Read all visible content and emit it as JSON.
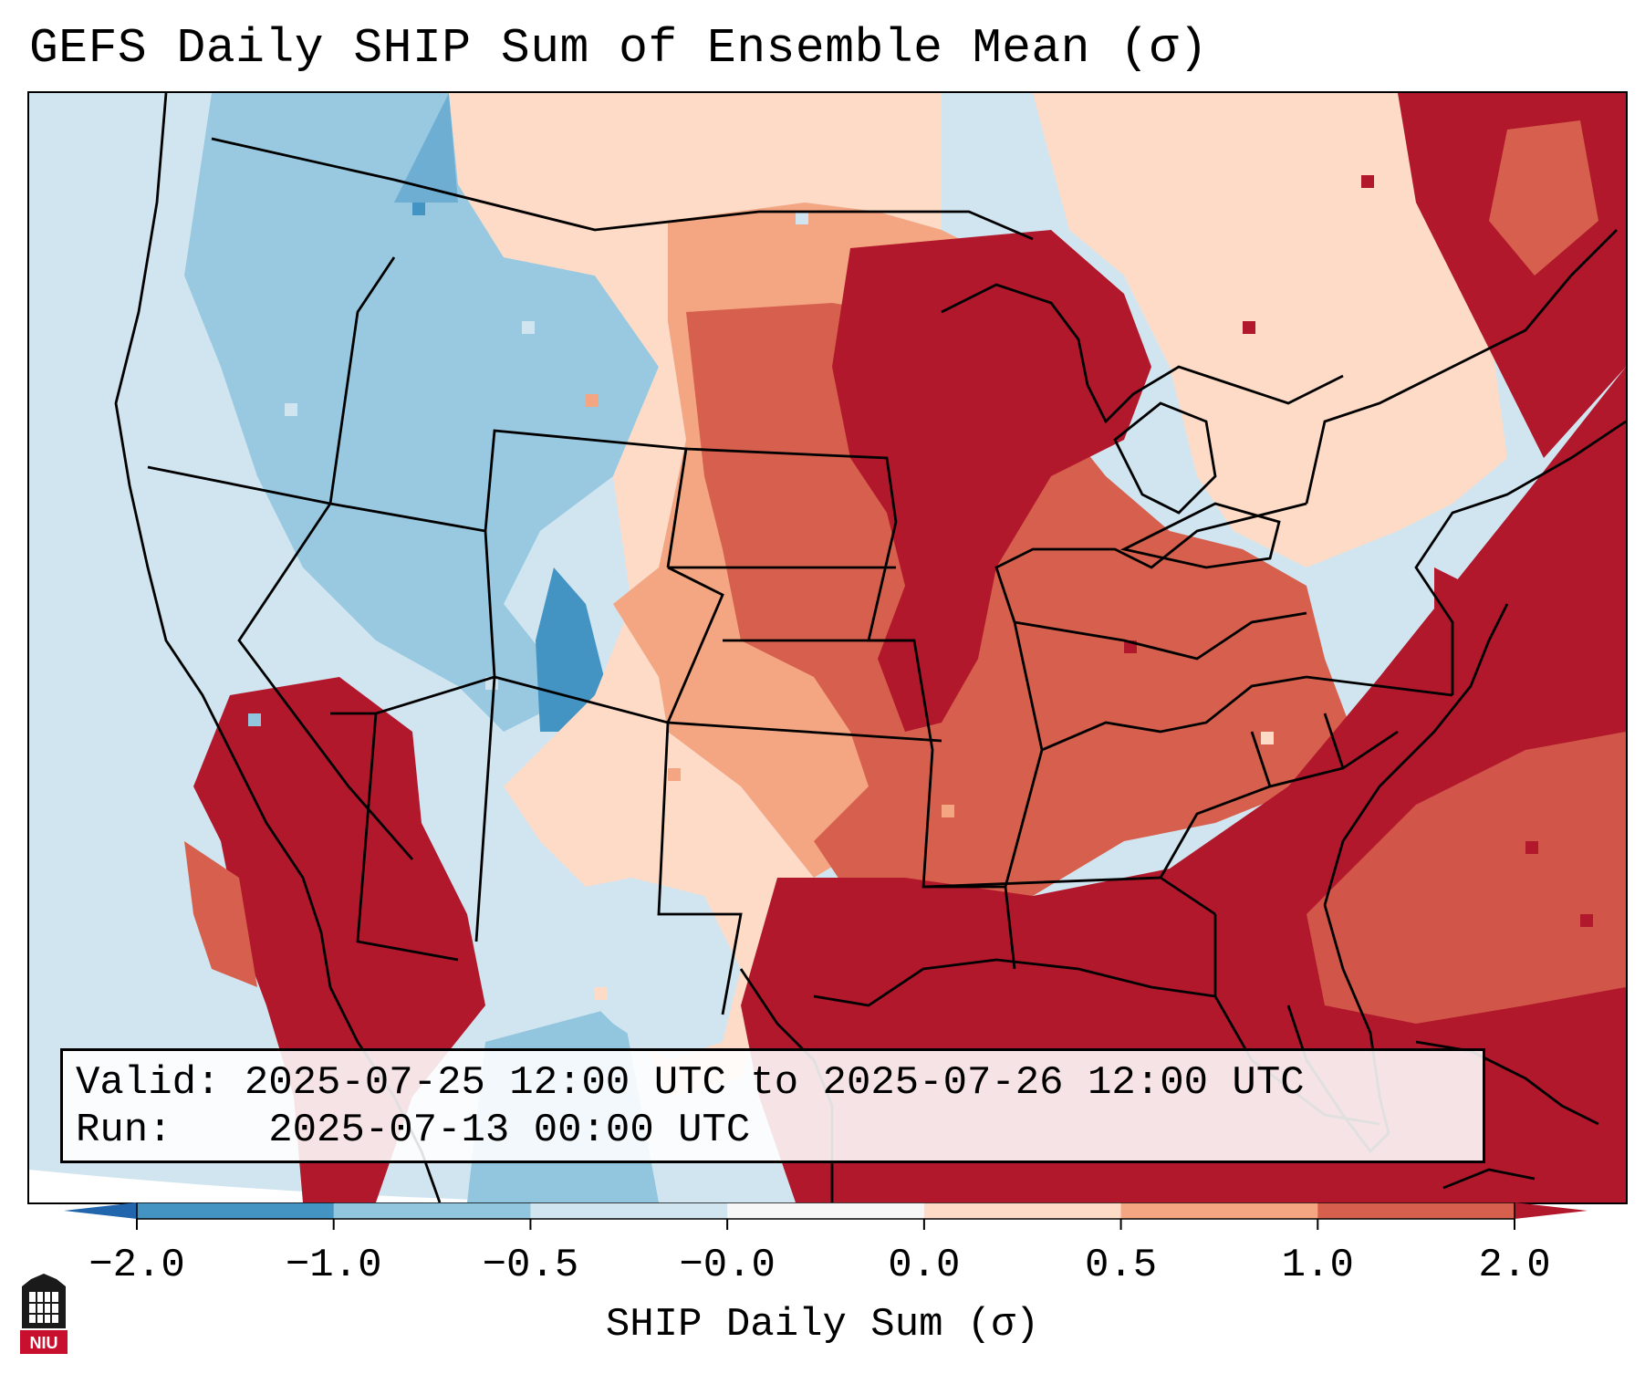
{
  "title": "GEFS Daily SHIP Sum of Ensemble Mean (σ)",
  "info": {
    "valid_label": "Valid:",
    "valid_value": "2025-07-25 12:00 UTC to 2025-07-26 12:00 UTC",
    "run_label": "Run:",
    "run_value": "2025-07-13 00:00 UTC"
  },
  "colorbar": {
    "label": "SHIP Daily Sum (σ)",
    "ticks": [
      "−2.0",
      "−1.0",
      "−0.5",
      "−0.0",
      "0.0",
      "0.5",
      "1.0",
      "2.0"
    ],
    "bins": [
      {
        "range": "-2.0 to -1.0",
        "color": "#4393c3"
      },
      {
        "range": "-1.0 to -0.5",
        "color": "#92c5de"
      },
      {
        "range": "-0.5 to -0.0",
        "color": "#d1e5f0"
      },
      {
        "range": "-0.0 to 0.0",
        "color": "#f7f7f7"
      },
      {
        "range": "0.0 to 0.5",
        "color": "#fddbc7"
      },
      {
        "range": "0.5 to 1.0",
        "color": "#f4a582"
      },
      {
        "range": "1.0 to 2.0",
        "color": "#d6604d"
      }
    ],
    "under_color": "#2166ac",
    "over_color": "#b2182b"
  },
  "logo": {
    "text": "NIU",
    "color": "#c8102e"
  }
}
